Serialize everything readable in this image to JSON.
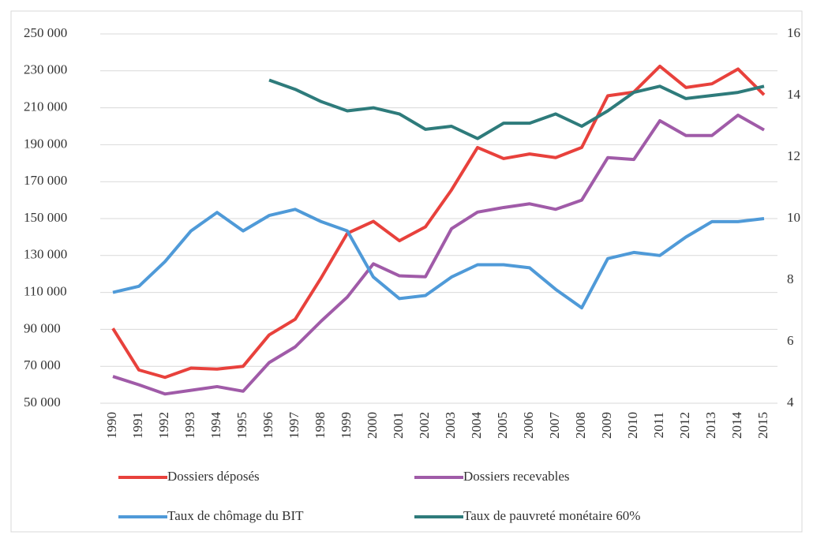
{
  "chart_data": {
    "type": "line",
    "categories": [
      "1990",
      "1991",
      "1992",
      "1993",
      "1994",
      "1995",
      "1996",
      "1997",
      "1998",
      "1999",
      "2000",
      "2001",
      "2002",
      "2003",
      "2004",
      "2005",
      "2006",
      "2007",
      "2008",
      "2009",
      "2010",
      "2011",
      "2012",
      "2013",
      "2014",
      "2015"
    ],
    "series": [
      {
        "name": "Dossiers déposés",
        "color": "#e8413c",
        "values": [
          90500,
          68000,
          64000,
          69000,
          68500,
          70000,
          87000,
          95500,
          118000,
          142000,
          148500,
          138000,
          145500,
          165500,
          188500,
          182500,
          185000,
          183000,
          188500,
          216500,
          218500,
          232500,
          221000,
          223000,
          231000,
          217000
        ]
      },
      {
        "name": "Dossiers recevables",
        "color": "#a05ba8",
        "values": [
          64500,
          60000,
          55000,
          57000,
          59000,
          56500,
          72000,
          80500,
          94500,
          107500,
          125500,
          119000,
          118500,
          144500,
          153500,
          156000,
          158000,
          155000,
          160000,
          183000,
          182000,
          203000,
          195000,
          195000,
          206000,
          198000
        ]
      },
      {
        "name": "Taux de chômage du BIT",
        "color": "#4f9ad8",
        "axis": "y2",
        "values": [
          7.6,
          7.8,
          8.6,
          9.6,
          10.2,
          9.6,
          10.1,
          10.3,
          9.9,
          9.6,
          8.1,
          7.4,
          7.5,
          8.1,
          8.5,
          8.5,
          8.4,
          7.7,
          7.1,
          8.7,
          8.9,
          8.8,
          9.4,
          9.9,
          9.9,
          10.0
        ]
      },
      {
        "name": "Taux de pauvreté monétaire 60%",
        "color": "#2e7b7b",
        "axis": "y2",
        "values": [
          null,
          null,
          null,
          null,
          null,
          null,
          14.5,
          14.2,
          13.8,
          13.5,
          13.6,
          13.4,
          12.9,
          13.0,
          12.6,
          13.1,
          13.1,
          13.4,
          13.0,
          13.5,
          14.1,
          14.3,
          13.9,
          14.0,
          14.1,
          14.3
        ]
      }
    ],
    "ylim": [
      50000,
      250000
    ],
    "yticks": [
      {
        "value": 50000,
        "label": "50 000"
      },
      {
        "value": 70000,
        "label": "70 000"
      },
      {
        "value": 90000,
        "label": "90 000"
      },
      {
        "value": 110000,
        "label": "110 000"
      },
      {
        "value": 130000,
        "label": "130 000"
      },
      {
        "value": 150000,
        "label": "150 000"
      },
      {
        "value": 170000,
        "label": "170 000"
      },
      {
        "value": 190000,
        "label": "190 000"
      },
      {
        "value": 210000,
        "label": "210 000"
      },
      {
        "value": 230000,
        "label": "230 000"
      },
      {
        "value": 250000,
        "label": "250 000"
      }
    ],
    "y2lim": [
      4,
      16
    ],
    "y2ticks": [
      4,
      6,
      8,
      10,
      12,
      14,
      16
    ],
    "grid": true
  }
}
